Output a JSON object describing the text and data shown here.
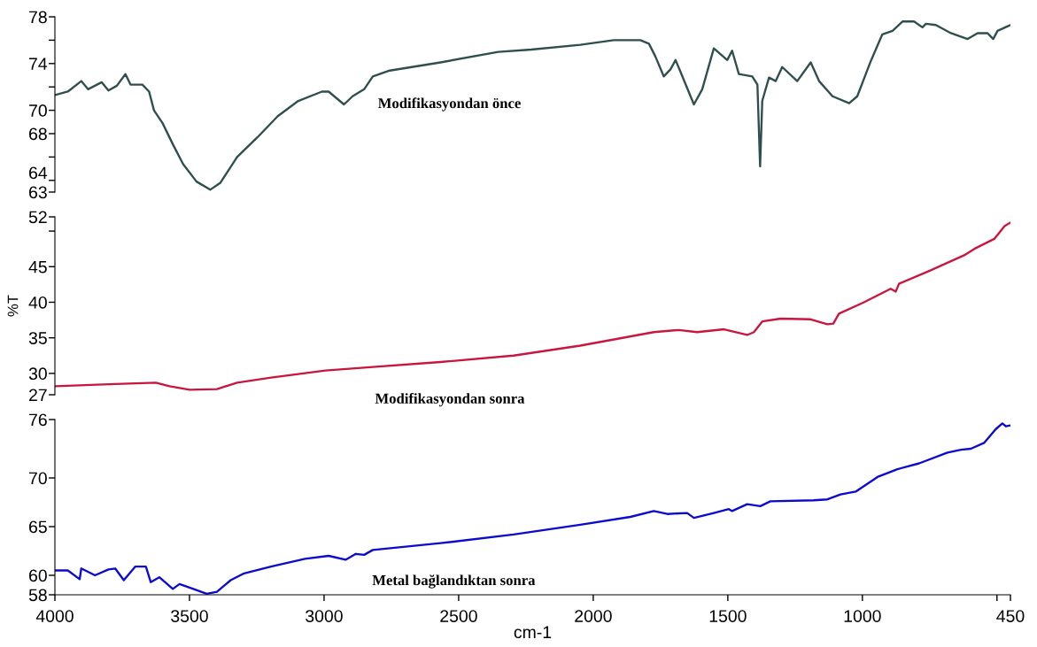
{
  "chart_data": [
    {
      "type": "line",
      "xlim": [
        4000,
        450
      ],
      "ylim": [
        63,
        78
      ],
      "yticks": [
        78,
        {
          "value": 76,
          "label": null
        },
        74,
        {
          "value": 72,
          "label": null
        },
        70,
        68,
        {
          "value": 66,
          "label": null
        },
        64,
        63
      ],
      "tick_labels": "y",
      "series": [
        {
          "name": "Modifikasyondan önce",
          "color": "#2f4f4f",
          "x": [
            4000,
            3952,
            3902,
            3877,
            3826,
            3801,
            3770,
            3738,
            3719,
            3675,
            3650,
            3632,
            3600,
            3562,
            3524,
            3474,
            3423,
            3385,
            3323,
            3247,
            3172,
            3096,
            3008,
            2983,
            2926,
            2894,
            2851,
            2819,
            2756,
            2567,
            2353,
            2230,
            2048,
            1924,
            1825,
            1793,
            1769,
            1738,
            1713,
            1694,
            1676,
            1626,
            1595,
            1552,
            1502,
            1484,
            1459,
            1409,
            1390,
            1380,
            1372,
            1347,
            1322,
            1298,
            1242,
            1192,
            1161,
            1111,
            1049,
            1019,
            969,
            926,
            888,
            851,
            808,
            777,
            764,
            727,
            671,
            609,
            572,
            535,
            514,
            498,
            460,
            450
          ],
          "values": [
            71.3,
            71.6,
            72.5,
            71.8,
            72.4,
            71.7,
            72.1,
            73.1,
            72.2,
            72.2,
            71.6,
            70.0,
            68.9,
            67.1,
            65.4,
            63.9,
            63.2,
            63.8,
            66.0,
            67.7,
            69.5,
            70.8,
            71.6,
            71.6,
            70.5,
            71.2,
            71.8,
            72.9,
            73.4,
            74.1,
            75.0,
            75.2,
            75.6,
            76.0,
            76.0,
            75.7,
            74.6,
            72.9,
            73.5,
            74.3,
            73.3,
            70.5,
            71.8,
            75.3,
            74.3,
            75.1,
            73.1,
            72.9,
            72.2,
            65.2,
            70.8,
            72.8,
            72.5,
            73.7,
            72.5,
            74.1,
            72.5,
            71.2,
            70.6,
            71.2,
            74.2,
            76.5,
            76.8,
            77.6,
            77.6,
            77.1,
            77.4,
            77.3,
            76.6,
            76.1,
            76.6,
            76.6,
            76.1,
            76.8,
            77.2,
            77.3
          ]
        }
      ]
    },
    {
      "type": "line",
      "ylabel": "%T",
      "xlim": [
        4000,
        450
      ],
      "ylim": [
        27,
        52
      ],
      "yticks": [
        52,
        {
          "value": 50,
          "label": null
        },
        45,
        40,
        35,
        30,
        27
      ],
      "tick_labels": "y",
      "series": [
        {
          "name": "Modifikasyondan sonra",
          "color": "#c8163f",
          "x": [
            4000,
            3776,
            3625,
            3574,
            3499,
            3398,
            3323,
            3197,
            2995,
            2819,
            2567,
            2296,
            2048,
            1775,
            1682,
            1614,
            1514,
            1428,
            1403,
            1372,
            1304,
            1192,
            1130,
            1108,
            1087,
            994,
            895,
            876,
            864,
            746,
            622,
            584,
            510,
            472,
            450
          ],
          "values": [
            28.2,
            28.5,
            28.7,
            28.2,
            27.7,
            27.8,
            28.7,
            29.4,
            30.4,
            30.9,
            31.6,
            32.5,
            33.9,
            35.8,
            36.1,
            35.8,
            36.2,
            35.4,
            35.8,
            37.3,
            37.7,
            37.6,
            36.9,
            37.0,
            38.4,
            40.0,
            41.9,
            41.5,
            42.6,
            44.5,
            46.6,
            47.5,
            48.9,
            50.7,
            51.2
          ]
        }
      ]
    },
    {
      "type": "line",
      "xlabel": "cm-1",
      "xlim": [
        4000,
        450
      ],
      "xticks": [
        4000,
        3500,
        3000,
        2500,
        2000,
        1500,
        1000,
        {
          "value": 500,
          "label": null
        },
        450
      ],
      "ylim": [
        58,
        76
      ],
      "yticks": [
        76,
        70,
        65,
        60,
        58
      ],
      "series": [
        {
          "name": "Metal bağlandıktan sonra",
          "color": "#0b0bd0",
          "x": [
            4000,
            3952,
            3908,
            3902,
            3851,
            3801,
            3776,
            3744,
            3701,
            3662,
            3644,
            3612,
            3562,
            3537,
            3486,
            3436,
            3398,
            3347,
            3297,
            3197,
            3071,
            2983,
            2920,
            2882,
            2851,
            2819,
            2567,
            2296,
            2048,
            1862,
            1775,
            1725,
            1651,
            1626,
            1552,
            1496,
            1484,
            1428,
            1379,
            1342,
            1181,
            1130,
            1081,
            1025,
            944,
            870,
            789,
            684,
            634,
            597,
            548,
            505,
            480,
            467,
            450
          ],
          "values": [
            60.5,
            60.5,
            59.6,
            60.7,
            60.0,
            60.6,
            60.7,
            59.5,
            60.9,
            60.9,
            59.3,
            59.8,
            58.6,
            59.1,
            58.6,
            58.1,
            58.3,
            59.5,
            60.2,
            60.9,
            61.7,
            62.0,
            61.6,
            62.2,
            62.1,
            62.6,
            63.3,
            64.2,
            65.2,
            66.0,
            66.6,
            66.3,
            66.4,
            65.9,
            66.4,
            66.8,
            66.6,
            67.3,
            67.1,
            67.6,
            67.7,
            67.8,
            68.3,
            68.6,
            70.1,
            70.9,
            71.5,
            72.6,
            72.9,
            73.0,
            73.6,
            75.0,
            75.6,
            75.3,
            75.4
          ]
        }
      ]
    }
  ]
}
